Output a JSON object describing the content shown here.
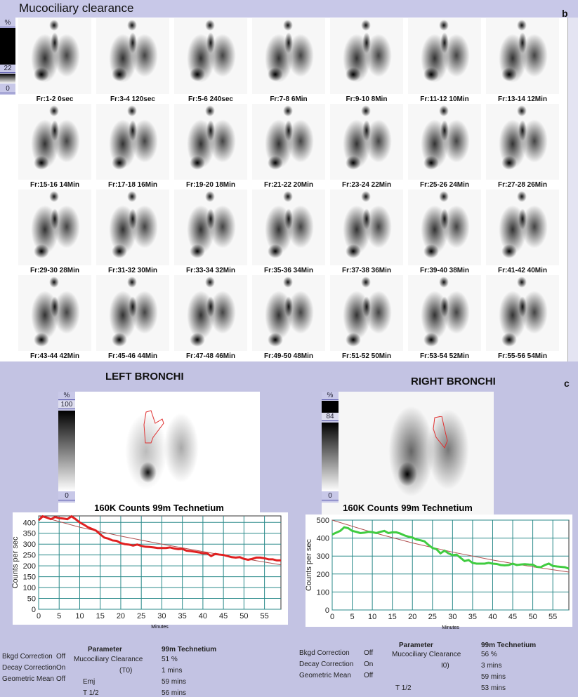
{
  "top": {
    "title": "Mucociliary clearance",
    "panel_letter": "b",
    "colorbar": {
      "unit": "%",
      "max": "22",
      "min": "0"
    },
    "frames": [
      "Fr:1-2 0sec",
      "Fr:3-4 120sec",
      "Fr:5-6 240sec",
      "Fr:7-8 6Min",
      "Fr:9-10 8Min",
      "Fr:11-12 10Min",
      "Fr:13-14 12Min",
      "Fr:15-16 14Min",
      "Fr:17-18 16Min",
      "Fr:19-20 18Min",
      "Fr:21-22 20Min",
      "Fr:23-24 22Min",
      "Fr:25-26 24Min",
      "Fr:27-28 26Min",
      "Fr:29-30 28Min",
      "Fr:31-32 30Min",
      "Fr:33-34 32Min",
      "Fr:35-36 34Min",
      "Fr:37-38 36Min",
      "Fr:39-40 38Min",
      "Fr:41-42 40Min",
      "Fr:43-44 42Min",
      "Fr:45-46 44Min",
      "Fr:47-48 46Min",
      "Fr:49-50 48Min",
      "Fr:51-52 50Min",
      "Fr:53-54 52Min",
      "Fr:55-56 54Min"
    ]
  },
  "bottom": {
    "panel_letter": "c",
    "left": {
      "heading": "LEFT BRONCHI",
      "colorbar": {
        "unit": "%",
        "max": "100",
        "min": "0"
      },
      "caption": "160K Counts 99m Technetium"
    },
    "right": {
      "heading": "RIGHT BRONCHI",
      "colorbar": {
        "unit": "%",
        "max": "84",
        "min": "0"
      },
      "caption": "160K Counts 99m Technetium"
    }
  },
  "chart_data": [
    {
      "type": "line",
      "xlabel": "Minutes",
      "ylabel": "Counts per sec",
      "xlim": [
        0,
        59
      ],
      "ylim": [
        0,
        430
      ],
      "xticks": [
        0,
        5,
        10,
        15,
        20,
        25,
        30,
        35,
        40,
        45,
        50,
        55
      ],
      "yticks": [
        0,
        50,
        100,
        150,
        200,
        250,
        300,
        350,
        400
      ],
      "grid": true,
      "series": [
        {
          "color": "#e02020",
          "x": [
            0,
            1,
            2,
            3,
            4,
            5,
            6,
            7,
            8,
            9,
            10,
            11,
            12,
            13,
            14,
            15,
            16,
            17,
            18,
            19,
            20,
            21,
            22,
            23,
            24,
            25,
            26,
            27,
            28,
            29,
            30,
            31,
            32,
            33,
            34,
            35,
            36,
            37,
            38,
            39,
            40,
            41,
            42,
            43,
            44,
            45,
            46,
            47,
            48,
            49,
            50,
            51,
            52,
            53,
            54,
            55,
            56,
            57,
            58,
            59
          ],
          "y": [
            410,
            428,
            422,
            415,
            425,
            420,
            418,
            415,
            428,
            415,
            400,
            390,
            378,
            370,
            362,
            345,
            330,
            325,
            317,
            315,
            305,
            300,
            298,
            293,
            298,
            292,
            288,
            287,
            285,
            282,
            282,
            282,
            285,
            280,
            277,
            278,
            270,
            268,
            265,
            262,
            258,
            258,
            245,
            255,
            252,
            250,
            245,
            240,
            238,
            240,
            232,
            228,
            232,
            238,
            238,
            235,
            230,
            230,
            225,
            225
          ]
        },
        {
          "color": "#b05050",
          "x": [
            0,
            10,
            20,
            30,
            40,
            50,
            59
          ],
          "y": [
            430,
            378,
            337,
            300,
            266,
            233,
            205
          ]
        }
      ]
    },
    {
      "type": "line",
      "xlabel": "Minutes",
      "ylabel": "Counts per sec",
      "xlim": [
        0,
        59
      ],
      "ylim": [
        0,
        500
      ],
      "xticks": [
        0,
        5,
        10,
        15,
        20,
        25,
        30,
        35,
        40,
        45,
        50,
        55
      ],
      "yticks": [
        0,
        100,
        200,
        300,
        400,
        500
      ],
      "grid": true,
      "series": [
        {
          "color": "#40cc40",
          "x": [
            0,
            1,
            2,
            3,
            4,
            5,
            6,
            7,
            8,
            9,
            10,
            11,
            12,
            13,
            14,
            15,
            16,
            17,
            18,
            19,
            20,
            21,
            22,
            23,
            24,
            25,
            26,
            27,
            28,
            29,
            30,
            31,
            32,
            33,
            34,
            35,
            36,
            37,
            38,
            39,
            40,
            41,
            42,
            43,
            44,
            45,
            46,
            47,
            48,
            49,
            50,
            51,
            52,
            53,
            54,
            55,
            56,
            57,
            58,
            59
          ],
          "y": [
            420,
            430,
            440,
            460,
            455,
            440,
            435,
            428,
            430,
            435,
            433,
            428,
            435,
            440,
            428,
            432,
            432,
            425,
            415,
            408,
            403,
            392,
            388,
            382,
            362,
            345,
            338,
            315,
            330,
            315,
            305,
            308,
            290,
            272,
            278,
            262,
            258,
            258,
            258,
            262,
            258,
            256,
            250,
            248,
            250,
            258,
            250,
            253,
            255,
            253,
            252,
            240,
            238,
            250,
            258,
            245,
            242,
            240,
            238,
            230
          ]
        },
        {
          "color": "#b05050",
          "x": [
            0,
            10,
            20,
            30,
            40,
            50,
            59
          ],
          "y": [
            500,
            432,
            373,
            322,
            278,
            240,
            211
          ]
        }
      ]
    }
  ],
  "tables": [
    {
      "settings": [
        [
          "Bkgd Correction",
          "Off"
        ],
        [
          "Decay Correction",
          "On"
        ],
        [
          "Geometric Mean",
          "Off"
        ]
      ],
      "header": [
        "Parameter",
        "99m Technetium"
      ],
      "rows": [
        [
          "Mucociliary Clearance",
          "51 %"
        ],
        [
          "(T0)",
          "1 mins"
        ],
        [
          "Emj",
          "59 mins"
        ],
        [
          "T 1/2",
          "56 mins"
        ]
      ]
    },
    {
      "settings": [
        [
          "Bkgd Correction",
          "Off"
        ],
        [
          "Decay Correction",
          "On"
        ],
        [
          "Geometric Mean",
          "Off"
        ]
      ],
      "header": [
        "Parameter",
        "99m Technetium"
      ],
      "rows": [
        [
          "Mucociliary Clearance",
          "56 %"
        ],
        [
          "I0)",
          "3 mins"
        ],
        [
          "",
          "59 mins"
        ],
        [
          "T 1/2",
          "53 mins"
        ]
      ]
    }
  ]
}
